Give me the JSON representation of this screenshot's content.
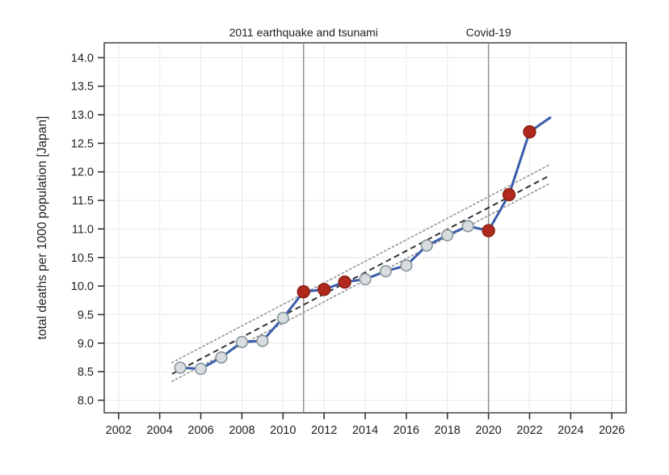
{
  "figure": {
    "background": "#ffffff"
  },
  "chart_data": {
    "type": "line",
    "title": "",
    "xlabel": "",
    "ylabel": "total deaths per 1000 population [Japan]",
    "xlim": [
      2001.3,
      2026.7
    ],
    "ylim": [
      7.78,
      14.26
    ],
    "grid": true,
    "x_tick_labels": [
      "2002",
      "2004",
      "2006",
      "2008",
      "2010",
      "2012",
      "2014",
      "2016",
      "2018",
      "2020",
      "2022",
      "2024",
      "2026"
    ],
    "y_tick_labels": [
      "8.0",
      "8.5",
      "9.0",
      "9.5",
      "10.0",
      "10.5",
      "11.0",
      "11.5",
      "12.0",
      "12.5",
      "13.0",
      "13.5",
      "14.0"
    ],
    "series_name": "total deaths per 1000 population (Japan)",
    "points": [
      {
        "year": 2005,
        "value": 8.57,
        "highlight": false
      },
      {
        "year": 2006,
        "value": 8.55,
        "highlight": false
      },
      {
        "year": 2007,
        "value": 8.75,
        "highlight": false
      },
      {
        "year": 2008,
        "value": 9.02,
        "highlight": false
      },
      {
        "year": 2009,
        "value": 9.04,
        "highlight": false
      },
      {
        "year": 2010,
        "value": 9.44,
        "highlight": false
      },
      {
        "year": 2011,
        "value": 9.9,
        "highlight": true
      },
      {
        "year": 2012,
        "value": 9.94,
        "highlight": true
      },
      {
        "year": 2013,
        "value": 10.07,
        "highlight": true
      },
      {
        "year": 2014,
        "value": 10.12,
        "highlight": false
      },
      {
        "year": 2015,
        "value": 10.26,
        "highlight": false
      },
      {
        "year": 2016,
        "value": 10.36,
        "highlight": false
      },
      {
        "year": 2017,
        "value": 10.71,
        "highlight": false
      },
      {
        "year": 2018,
        "value": 10.89,
        "highlight": false
      },
      {
        "year": 2019,
        "value": 11.05,
        "highlight": false
      },
      {
        "year": 2020,
        "value": 10.97,
        "highlight": true
      },
      {
        "year": 2021,
        "value": 11.6,
        "highlight": true
      },
      {
        "year": 2022,
        "value": 12.7,
        "highlight": true
      },
      {
        "year": 2023,
        "value": 12.95,
        "highlight": false,
        "marker": false
      }
    ],
    "trend_line": {
      "style": "dashed",
      "x1": 2004.6,
      "y1": 8.46,
      "x2": 2023.0,
      "y2": 11.94
    },
    "confidence_band": {
      "upper": {
        "style": "dotted",
        "x1": 2004.6,
        "y1": 8.66,
        "x2": 2023.0,
        "y2": 12.13
      },
      "lower": {
        "style": "dotted",
        "x1": 2004.6,
        "y1": 8.33,
        "x2": 2023.0,
        "y2": 11.8
      }
    },
    "events": [
      {
        "label": "2011 earthquake and tsunami",
        "year": 2011
      },
      {
        "label": "Covid-19",
        "year": 2020
      }
    ],
    "legend": "none",
    "colors": {
      "line": "#3a5dab",
      "highlight_marker_fill": "#b1291d",
      "highlight_marker_stroke": "#8c2015",
      "normal_marker_fill": "#d9dde0",
      "normal_marker_stroke": "#87969a",
      "reference_line": "#8f8f8f",
      "grid": "#ececec",
      "frame": "#4f4f4f",
      "trend": "#2b2b2b",
      "confidence": "#9a9a9a",
      "text": "#1f1f1f"
    }
  }
}
